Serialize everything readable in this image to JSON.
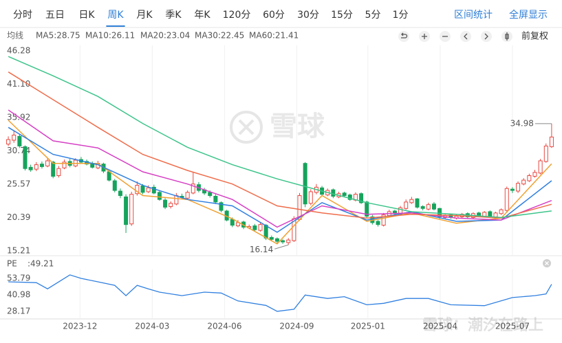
{
  "toolbar": {
    "tabs": [
      "分时",
      "五日",
      "日K",
      "周K",
      "月K",
      "季K",
      "年K",
      "120分",
      "60分",
      "30分",
      "15分",
      "5分",
      "1分"
    ],
    "active_tab": 3,
    "actions": [
      "区间统计",
      "全屏显示"
    ]
  },
  "ma_bar": {
    "title": "均线",
    "adjust": "前复权"
  },
  "watermarks": [
    "雪球",
    "雪球：潮汐在路上"
  ],
  "chart_data": [
    {
      "type": "candlestick",
      "up_color": "#e8473f",
      "down_color": "#16a35c",
      "xlim": [
        -0.5,
        97.5
      ],
      "ylim": [
        15.21,
        46.28
      ],
      "yticks": [
        46.28,
        {
          "value": 41.1,
          "label": "41.10"
        },
        35.92,
        30.74,
        25.57,
        20.39,
        15.21
      ],
      "open": [
        31.8,
        32.4,
        33.0,
        31.4,
        28.2,
        27.9,
        28.7,
        28.4,
        29.0,
        26.9,
        28.1,
        29.1,
        28.4,
        29.4,
        29.1,
        28.8,
        28.1,
        28.7,
        27.5,
        26.1,
        24.5,
        23.6,
        19.4,
        24.1,
        25.3,
        24.4,
        25.1,
        24.3,
        23.1,
        22.1,
        22.5,
        23.7,
        23.4,
        24.2,
        25.5,
        24.7,
        24.3,
        23.7,
        22.7,
        21.4,
        20.1,
        19.1,
        19.7,
        18.8,
        19.1,
        18.4,
        19.2,
        17.3,
        17.1,
        16.8,
        16.5,
        16.8,
        20.1,
        28.8,
        22.6,
        24.3,
        25.0,
        23.9,
        24.7,
        23.6,
        24.2,
        23.9,
        23.1,
        24.1,
        22.8,
        20.5,
        19.8,
        19.2,
        20.7,
        21.4,
        20.9,
        21.8,
        22.7,
        23.3,
        22.1,
        21.7,
        22.5,
        21.8,
        20.4,
        20.8,
        20.3,
        20.5,
        21.0,
        20.4,
        21.1,
        20.6,
        21.3,
        20.5,
        21.0,
        21.5,
        24.8,
        24.5,
        25.6,
        26.1,
        26.8,
        27.3,
        29.1,
        31.4
      ],
      "close": [
        32.5,
        33.2,
        31.5,
        28.0,
        27.8,
        28.6,
        28.3,
        29.2,
        26.8,
        28.0,
        29.0,
        28.5,
        29.3,
        29.0,
        28.7,
        28.2,
        28.8,
        27.6,
        26.2,
        24.6,
        23.8,
        19.3,
        24.0,
        25.4,
        24.3,
        25.0,
        24.2,
        23.2,
        22.0,
        22.6,
        23.8,
        23.5,
        24.3,
        25.6,
        24.6,
        24.2,
        23.8,
        22.8,
        21.5,
        20.0,
        19.2,
        19.6,
        18.9,
        19.0,
        18.5,
        19.3,
        17.2,
        17.0,
        16.7,
        16.6,
        16.9,
        20.2,
        23.8,
        22.5,
        24.4,
        25.1,
        24.0,
        24.6,
        23.7,
        24.1,
        23.8,
        23.2,
        24.0,
        22.7,
        20.6,
        19.6,
        19.3,
        20.8,
        21.3,
        21.0,
        21.9,
        22.8,
        23.2,
        22.0,
        21.8,
        22.4,
        21.7,
        20.5,
        20.7,
        20.4,
        20.6,
        20.9,
        20.5,
        21.0,
        20.7,
        21.2,
        20.6,
        21.1,
        21.6,
        24.9,
        24.6,
        25.7,
        26.2,
        26.9,
        27.4,
        29.2,
        31.5,
        32.9
      ],
      "high": [
        33.0,
        33.8,
        33.3,
        31.6,
        28.6,
        29.0,
        29.1,
        29.6,
        29.2,
        28.4,
        29.4,
        29.5,
        29.6,
        29.8,
        29.4,
        29.1,
        29.2,
        28.9,
        27.8,
        26.4,
        24.9,
        24.0,
        24.4,
        26.0,
        25.6,
        25.4,
        25.5,
        24.6,
        23.4,
        22.9,
        24.2,
        24.1,
        24.6,
        27.5,
        25.9,
        25.0,
        24.6,
        24.0,
        22.9,
        21.6,
        20.4,
        20.0,
        19.9,
        19.3,
        19.4,
        19.6,
        19.4,
        17.6,
        17.3,
        17.0,
        17.2,
        20.6,
        24.2,
        29.0,
        24.8,
        25.6,
        25.3,
        24.9,
        24.9,
        24.4,
        24.4,
        24.1,
        24.3,
        24.3,
        23.0,
        20.8,
        20.0,
        21.1,
        21.6,
        21.6,
        22.2,
        23.2,
        23.6,
        23.4,
        22.3,
        22.7,
        22.8,
        21.9,
        20.9,
        21.0,
        20.8,
        21.1,
        21.2,
        21.2,
        21.3,
        21.4,
        21.5,
        21.3,
        21.8,
        25.2,
        25.1,
        26.0,
        26.5,
        27.2,
        27.8,
        29.5,
        31.9,
        34.98
      ],
      "low": [
        31.5,
        32.0,
        31.2,
        27.7,
        27.5,
        27.6,
        28.0,
        28.2,
        26.5,
        26.6,
        27.9,
        28.2,
        28.2,
        28.8,
        28.5,
        28.0,
        27.9,
        27.3,
        26.0,
        24.3,
        23.4,
        18.0,
        19.1,
        23.8,
        24.0,
        24.2,
        24.0,
        23.0,
        21.7,
        21.8,
        22.3,
        23.2,
        23.2,
        24.0,
        24.3,
        23.9,
        23.5,
        22.5,
        21.2,
        19.8,
        18.9,
        18.9,
        18.6,
        18.6,
        18.2,
        18.2,
        16.9,
        16.7,
        16.4,
        16.3,
        16.14,
        16.6,
        19.9,
        22.0,
        22.3,
        24.0,
        23.8,
        23.7,
        23.4,
        23.4,
        23.6,
        23.0,
        22.9,
        22.5,
        20.3,
        19.3,
        19.0,
        19.0,
        20.5,
        20.7,
        20.7,
        21.6,
        22.5,
        21.8,
        21.5,
        21.5,
        21.5,
        20.2,
        20.2,
        20.2,
        20.1,
        20.3,
        20.3,
        20.2,
        20.5,
        20.4,
        20.4,
        20.3,
        20.8,
        21.3,
        24.2,
        24.2,
        25.4,
        25.9,
        26.6,
        27.1,
        28.9,
        31.2
      ],
      "series": [
        {
          "name": "MA5",
          "label": "MA5:28.75",
          "color": "#f0a030",
          "x": [
            0,
            8,
            16,
            24,
            32,
            40,
            48,
            56,
            64,
            72,
            80,
            88,
            97
          ],
          "values": [
            35.5,
            28.8,
            28.8,
            23.8,
            23.2,
            20.2,
            16.3,
            23.8,
            19.8,
            21.1,
            19.5,
            20.3,
            28.75
          ]
        },
        {
          "name": "MA10",
          "label": "MA10:26.11",
          "color": "#2f7fe0",
          "x": [
            0,
            8,
            16,
            24,
            32,
            40,
            48,
            56,
            64,
            72,
            80,
            88,
            97
          ],
          "values": [
            34.4,
            30.2,
            28.6,
            25.4,
            23.2,
            22.2,
            18.1,
            22.7,
            20.0,
            21.3,
            19.8,
            20.0,
            26.11
          ]
        },
        {
          "name": "MA20",
          "label": "MA20:23.04",
          "color": "#d63fc4",
          "x": [
            0,
            8,
            16,
            24,
            32,
            40,
            48,
            56,
            64,
            72,
            80,
            88,
            97
          ],
          "values": [
            37.1,
            32.3,
            31.2,
            27.5,
            25.6,
            23.2,
            18.9,
            22.2,
            20.9,
            21.1,
            20.3,
            20.0,
            23.04
          ]
        },
        {
          "name": "MA30",
          "label": "MA30:22.45",
          "color": "#ef6c4a",
          "x": [
            0,
            8,
            16,
            24,
            32,
            40,
            48,
            56,
            64,
            72,
            80,
            88,
            97
          ],
          "values": [
            43.0,
            38.7,
            34.4,
            30.2,
            27.7,
            25.6,
            22.2,
            21.1,
            20.3,
            20.9,
            20.7,
            20.3,
            22.45
          ]
        },
        {
          "name": "MA60",
          "label": "MA60:21.41",
          "color": "#3cc48a",
          "x": [
            0,
            8,
            16,
            24,
            32,
            40,
            48,
            56,
            64,
            72,
            80,
            88,
            97
          ],
          "values": [
            45.4,
            42.4,
            39.2,
            35.0,
            31.3,
            28.6,
            26.4,
            24.5,
            22.7,
            21.3,
            20.9,
            20.4,
            21.41
          ]
        }
      ]
    },
    {
      "type": "line",
      "title": "PE",
      "current_label": ":49.21",
      "color": "#2f7fe0",
      "xlim": [
        -0.5,
        97.5
      ],
      "ylim": [
        22.3,
        60.73
      ],
      "yticks": [
        53.79,
        40.98,
        28.17
      ],
      "xticks": [
        {
          "value": 12.8,
          "label": "2023-12"
        },
        {
          "value": 25.7,
          "label": "2024-03"
        },
        {
          "value": 38.6,
          "label": "2024-06"
        },
        {
          "value": 51.5,
          "label": "2024-09"
        },
        {
          "value": 64.2,
          "label": "2025-01"
        },
        {
          "value": 77.1,
          "label": "2025-04"
        },
        {
          "value": 90,
          "label": "2025-07"
        }
      ],
      "xgrid": true,
      "x": [
        0,
        5,
        7,
        11,
        13,
        16,
        19,
        21,
        23,
        25,
        27,
        31,
        35,
        38,
        41,
        46,
        48,
        51,
        53,
        57,
        60,
        64,
        67,
        71,
        75,
        79,
        85,
        90,
        94,
        96,
        97
      ],
      "values": [
        51.1,
        50.5,
        45.7,
        56.5,
        53.8,
        51.1,
        48.4,
        40.4,
        48.4,
        45.7,
        43.1,
        40.4,
        43.1,
        42.4,
        36.3,
        32.8,
        28.2,
        29.8,
        40.9,
        38.2,
        39.6,
        33.3,
        34.4,
        38.2,
        38.2,
        33.3,
        32.6,
        38.9,
        40.4,
        41.7,
        49.21
      ]
    }
  ]
}
